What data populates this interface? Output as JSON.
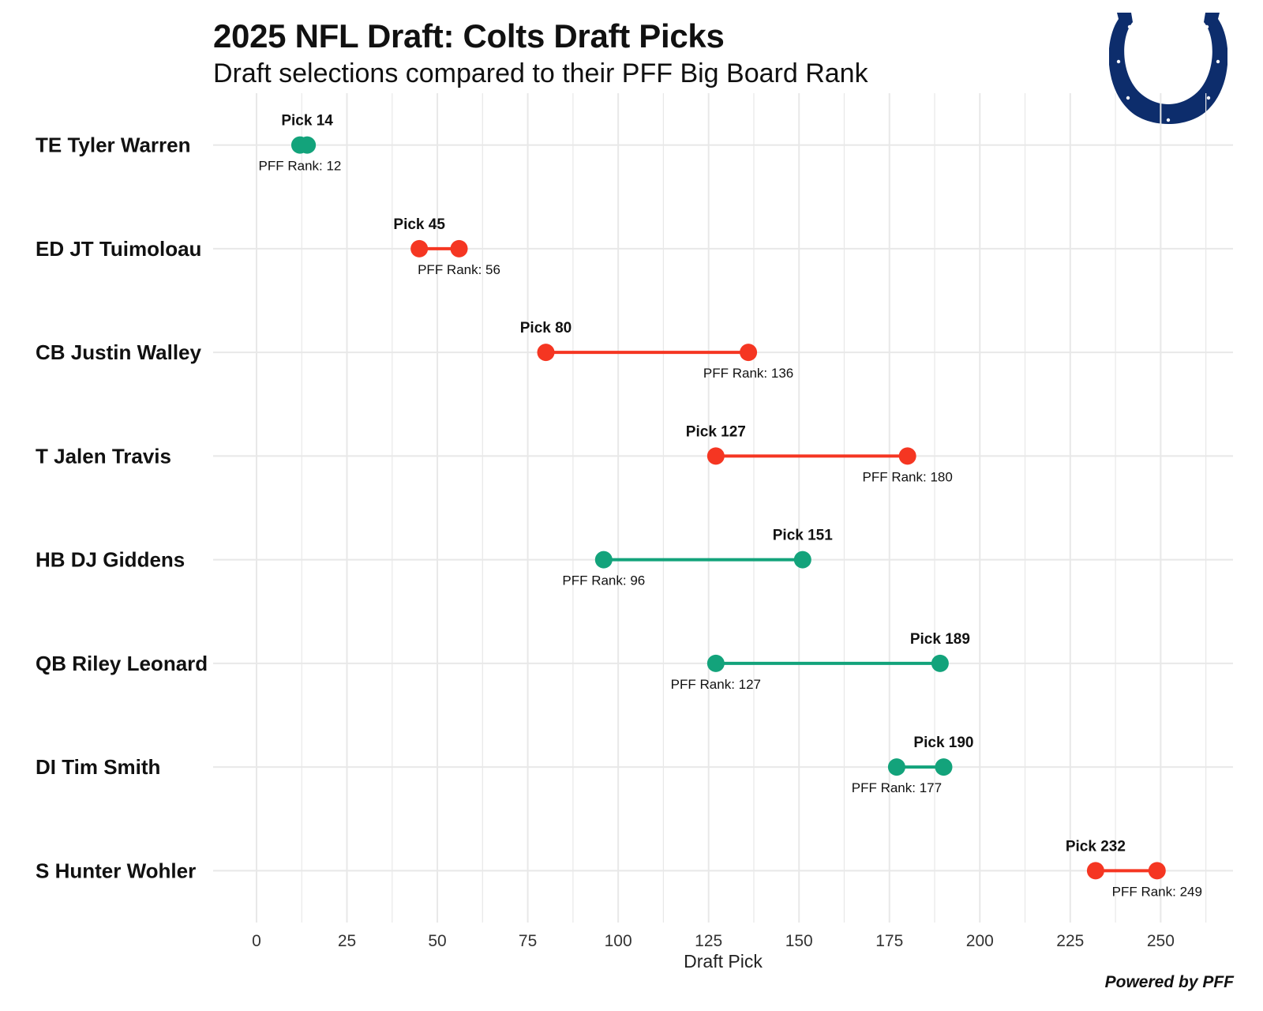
{
  "header": {
    "title": "2025 NFL Draft: Colts Draft Picks",
    "subtitle": "Draft selections compared to their PFF Big Board Rank"
  },
  "footer": {
    "credit": "Powered by PFF"
  },
  "logo": {
    "icon": "colts-horseshoe-logo",
    "color": "#0d2d6c"
  },
  "colors": {
    "better": "#13a37b",
    "worse": "#f53622",
    "grid": "#e8e8e8"
  },
  "chart_data": {
    "type": "dumbbell",
    "xlabel": "Draft Pick",
    "ylabel": "",
    "xlim": [
      -12,
      270
    ],
    "xticks": [
      0,
      25,
      50,
      75,
      100,
      125,
      150,
      175,
      200,
      225,
      250
    ],
    "pick_label_prefix": "Pick ",
    "rank_label_prefix": "PFF Rank: ",
    "legend": "none",
    "grid": true,
    "players": [
      {
        "name": "TE Tyler Warren",
        "pick": 14,
        "pff_rank": 12,
        "outcome": "better"
      },
      {
        "name": "ED JT Tuimoloau",
        "pick": 45,
        "pff_rank": 56,
        "outcome": "worse"
      },
      {
        "name": "CB Justin Walley",
        "pick": 80,
        "pff_rank": 136,
        "outcome": "worse"
      },
      {
        "name": "T Jalen Travis",
        "pick": 127,
        "pff_rank": 180,
        "outcome": "worse"
      },
      {
        "name": "HB DJ Giddens",
        "pick": 151,
        "pff_rank": 96,
        "outcome": "better"
      },
      {
        "name": "QB Riley Leonard",
        "pick": 189,
        "pff_rank": 127,
        "outcome": "better"
      },
      {
        "name": "DI Tim Smith",
        "pick": 190,
        "pff_rank": 177,
        "outcome": "better"
      },
      {
        "name": "S Hunter Wohler",
        "pick": 232,
        "pff_rank": 249,
        "outcome": "worse"
      }
    ]
  }
}
